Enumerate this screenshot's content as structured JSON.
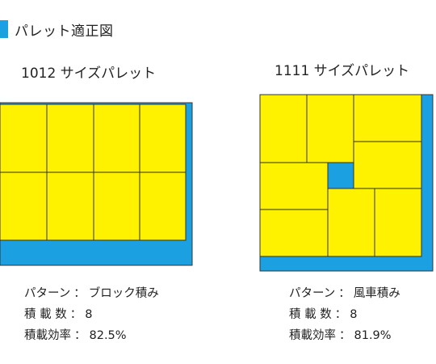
{
  "header": {
    "title": "パレット適正図",
    "accent_color": "#1ba1e2"
  },
  "colors": {
    "pallet": "#1ba1e2",
    "box": "#fff200",
    "outline": "#333333"
  },
  "pallets": [
    {
      "title": "1012 サイズパレット",
      "pattern_label": "パターン",
      "pattern_value": "ブロック積み",
      "count_label": "積 載 数",
      "count_value": "8",
      "efficiency_label": "積載効率",
      "efficiency_value": "82.5%"
    },
    {
      "title": "1111 サイズパレット",
      "pattern_label": "パターン",
      "pattern_value": "風車積み",
      "count_label": "積 載 数",
      "count_value": "8",
      "efficiency_label": "積載効率",
      "efficiency_value": "81.9%"
    }
  ],
  "separator": "："
}
